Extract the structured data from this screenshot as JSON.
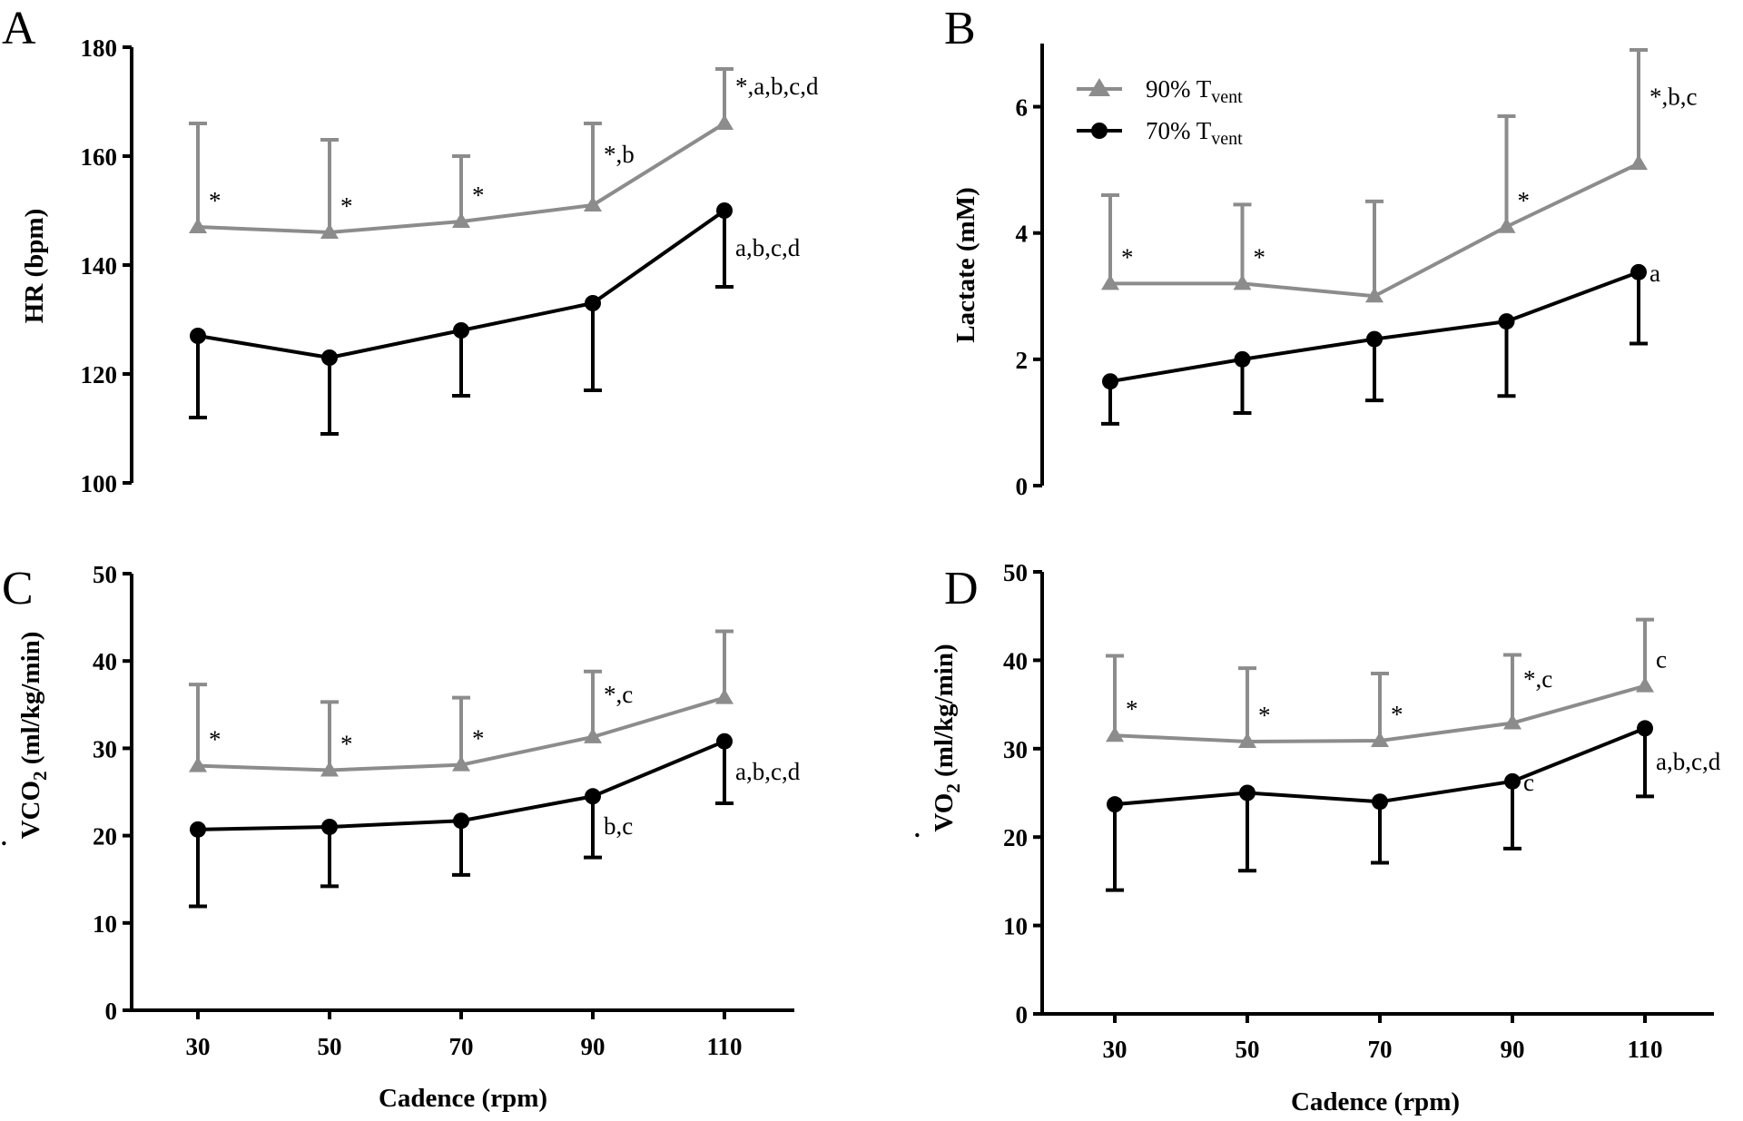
{
  "legend": {
    "series_90": {
      "main": "90% T",
      "sub": "vent"
    },
    "series_70": {
      "main": "70% T",
      "sub": "vent"
    }
  },
  "colors": {
    "series_90": "#8c8c8c",
    "series_70": "#000000"
  },
  "chart_data": [
    {
      "panel": "A",
      "type": "line",
      "x": [
        30,
        50,
        70,
        90,
        110
      ],
      "xticks": [
        "30",
        "50",
        "70",
        "90",
        "110"
      ],
      "xlabel": "",
      "ylabel": {
        "main": "HR (bpm)"
      },
      "ylim": [
        100,
        180
      ],
      "yticks": [
        100,
        120,
        140,
        160,
        180
      ],
      "series": [
        {
          "name": "90% Tvent",
          "values": [
            147,
            146,
            148,
            151,
            166
          ],
          "error_upper": [
            166,
            163,
            160,
            166,
            176
          ],
          "annotations": [
            "*",
            "*",
            "*",
            "*,b",
            "*,a,b,c,d"
          ]
        },
        {
          "name": "70% Tvent",
          "values": [
            127,
            123,
            128,
            133,
            150
          ],
          "error_lower": [
            112,
            109,
            116,
            117,
            136
          ],
          "annotations": [
            "",
            "",
            "",
            "",
            "a,b,c,d"
          ]
        }
      ]
    },
    {
      "panel": "B",
      "type": "line",
      "x": [
        30,
        50,
        70,
        90,
        110
      ],
      "xticks": [
        "30",
        "50",
        "70",
        "90",
        "110"
      ],
      "xlabel": "",
      "ylabel": {
        "main": "Lactate (mM)"
      },
      "ylim": [
        0,
        7
      ],
      "yticks": [
        0,
        2,
        4,
        6
      ],
      "series": [
        {
          "name": "90% Tvent",
          "values": [
            3.2,
            3.2,
            3.0,
            4.1,
            5.1
          ],
          "error_upper": [
            4.6,
            4.45,
            4.5,
            5.85,
            6.9
          ],
          "annotations": [
            "*",
            "*",
            "",
            "*",
            "*,b,c"
          ]
        },
        {
          "name": "70% Tvent",
          "values": [
            1.65,
            2.0,
            2.32,
            2.6,
            3.38
          ],
          "error_lower": [
            0.98,
            1.15,
            1.35,
            1.42,
            2.25
          ],
          "annotations": [
            "",
            "",
            "",
            "",
            "a"
          ]
        }
      ]
    },
    {
      "panel": "C",
      "type": "line",
      "x": [
        30,
        50,
        70,
        90,
        110
      ],
      "xticks": [
        "30",
        "50",
        "70",
        "90",
        "110"
      ],
      "xlabel": "Cadence (rpm)",
      "ylabel": {
        "dot": "˙",
        "main": "VCO",
        "sub": "2",
        "rest": " (ml/kg/min)"
      },
      "ylim": [
        0,
        50
      ],
      "yticks": [
        0,
        10,
        20,
        30,
        40,
        50
      ],
      "series": [
        {
          "name": "90% Tvent",
          "values": [
            28.0,
            27.5,
            28.1,
            31.3,
            35.8
          ],
          "error_upper": [
            37.3,
            35.3,
            35.8,
            38.8,
            43.4
          ],
          "annotations": [
            "*",
            "*",
            "*",
            "*,c",
            ""
          ]
        },
        {
          "name": "70% Tvent",
          "values": [
            20.7,
            21.0,
            21.7,
            24.5,
            30.8
          ],
          "error_lower": [
            11.9,
            14.2,
            15.5,
            17.5,
            23.7
          ],
          "annotations": [
            "",
            "",
            "",
            "b,c",
            "a,b,c,d"
          ]
        }
      ]
    },
    {
      "panel": "D",
      "type": "line",
      "x": [
        30,
        50,
        70,
        90,
        110
      ],
      "xticks": [
        "30",
        "50",
        "70",
        "90",
        "110"
      ],
      "xlabel": "Cadence (rpm)",
      "ylabel": {
        "dot": "˙",
        "main": "VO",
        "sub": "2",
        "rest": " (ml/kg/min)"
      },
      "ylim": [
        0,
        50
      ],
      "yticks": [
        0,
        10,
        20,
        30,
        40,
        50
      ],
      "series": [
        {
          "name": "90% Tvent",
          "values": [
            31.5,
            30.8,
            30.9,
            32.9,
            37.1
          ],
          "error_upper": [
            40.5,
            39.1,
            38.5,
            40.6,
            44.6
          ],
          "annotations": [
            "*",
            "*",
            "*",
            "*,c",
            "c"
          ]
        },
        {
          "name": "70% Tvent",
          "values": [
            23.7,
            25.0,
            24.0,
            26.3,
            32.3
          ],
          "error_lower": [
            14.0,
            16.2,
            17.1,
            18.7,
            24.6
          ],
          "annotations": [
            "",
            "",
            "",
            "c",
            "a,b,c,d"
          ]
        }
      ]
    }
  ]
}
